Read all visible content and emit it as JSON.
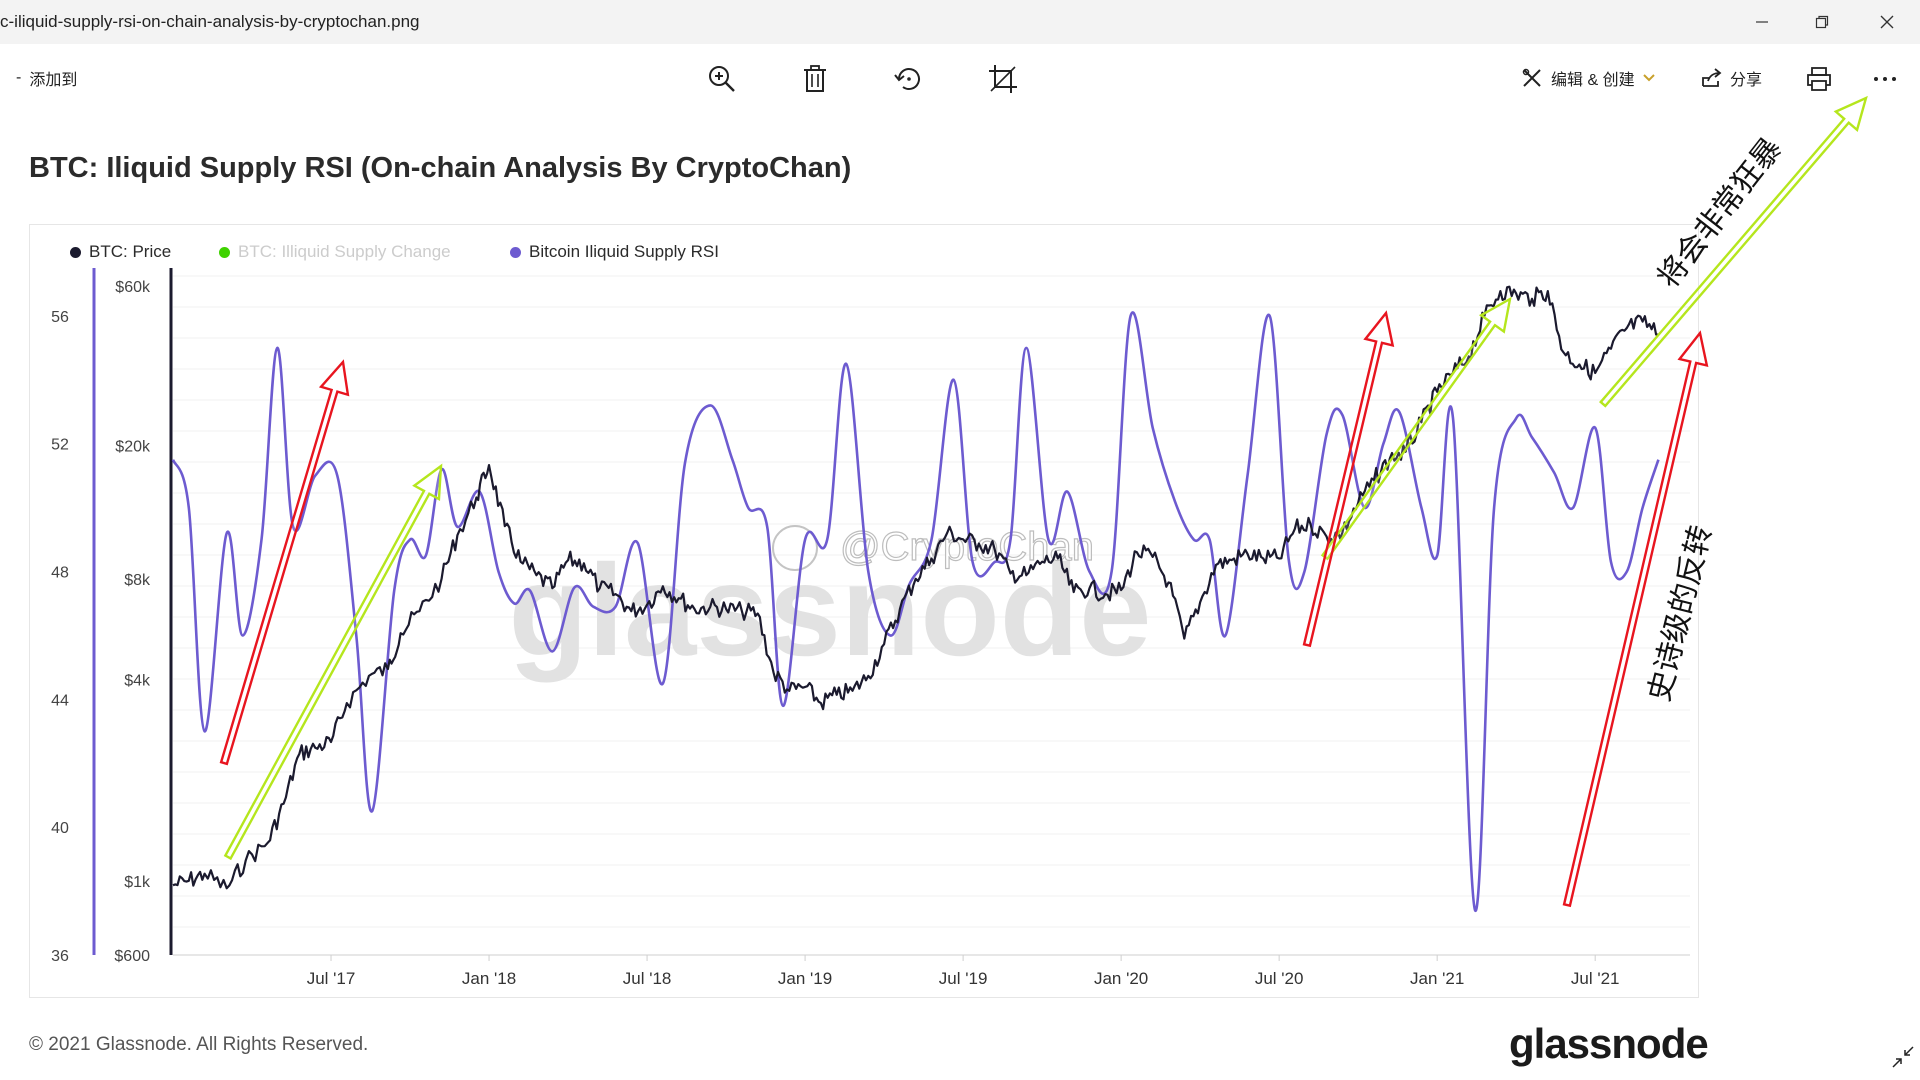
{
  "window": {
    "title": "c-iliquid-supply-rsi-on-chain-analysis-by-cryptochan.png",
    "controls": [
      "minimize",
      "restore",
      "close"
    ]
  },
  "toolbar": {
    "add_to_label": "添加到",
    "edit_create_label": "编辑 & 创建",
    "share_label": "分享",
    "icons": [
      "zoom-in-icon",
      "delete-icon",
      "rotate-icon",
      "crop-icon",
      "edit-icon",
      "share-icon",
      "print-icon",
      "more-icon"
    ]
  },
  "colors": {
    "price": "#1b1a2e",
    "rsi": "#6d5bd0",
    "supply_change": "#3fd200",
    "arrow_red": "#e8151f",
    "arrow_green": "#b5e61d"
  },
  "footer": {
    "copyright": "© 2021 Glassnode. All Rights Reserved.",
    "logo": "glassnode"
  },
  "chart_data": {
    "type": "line",
    "title": "BTC: Iliquid Supply RSI (On-chain Analysis By CryptoChan)",
    "legend": [
      {
        "name": "BTC: Price",
        "color": "#1b1a2e"
      },
      {
        "name": "BTC: Illiquid Supply Change",
        "color": "#3fd200",
        "disabled": true
      },
      {
        "name": "Bitcoin Iliquid Supply RSI",
        "color": "#6d5bd0"
      }
    ],
    "x_ticks": [
      "Jul '17",
      "Jan '18",
      "Jul '18",
      "Jan '19",
      "Jul '19",
      "Jan '20",
      "Jul '20",
      "Jan '21",
      "Jul '21"
    ],
    "x_tick_dates": [
      2017.5,
      2018.0,
      2018.5,
      2019.0,
      2019.5,
      2020.0,
      2020.5,
      2021.0,
      2021.5
    ],
    "xlim": [
      2017.0,
      2021.8
    ],
    "rsi_axis": {
      "ticks": [
        56,
        52,
        48,
        44,
        40,
        36
      ],
      "ylim": [
        36,
        57.5
      ]
    },
    "price_axis": {
      "ticks": [
        "$60k",
        "$20k",
        "$8k",
        "$4k",
        "$1k",
        "$600"
      ],
      "values": [
        60000,
        20000,
        8000,
        4000,
        1000,
        600
      ],
      "scale": "log"
    },
    "series": [
      {
        "name": "Bitcoin Iliquid Supply RSI",
        "x": [
          2017.0,
          2017.05,
          2017.1,
          2017.17,
          2017.22,
          2017.28,
          2017.33,
          2017.38,
          2017.45,
          2017.52,
          2017.58,
          2017.63,
          2017.7,
          2017.75,
          2017.8,
          2017.85,
          2017.9,
          2017.97,
          2018.03,
          2018.08,
          2018.13,
          2018.2,
          2018.27,
          2018.33,
          2018.4,
          2018.47,
          2018.55,
          2018.62,
          2018.7,
          2018.77,
          2018.82,
          2018.88,
          2018.93,
          2019.0,
          2019.07,
          2019.13,
          2019.2,
          2019.27,
          2019.33,
          2019.4,
          2019.47,
          2019.53,
          2019.6,
          2019.65,
          2019.7,
          2019.77,
          2019.83,
          2019.9,
          2019.97,
          2020.03,
          2020.1,
          2020.17,
          2020.23,
          2020.28,
          2020.33,
          2020.4,
          2020.47,
          2020.53,
          2020.58,
          2020.65,
          2020.7,
          2020.77,
          2020.83,
          2020.88,
          2020.95,
          2021.0,
          2021.05,
          2021.12,
          2021.18,
          2021.25,
          2021.3,
          2021.37,
          2021.43,
          2021.5,
          2021.55,
          2021.6,
          2021.65,
          2021.7
        ],
        "values": [
          51.5,
          50.0,
          43.0,
          49.2,
          46.0,
          49.0,
          55.0,
          49.4,
          51.0,
          51.0,
          46.0,
          40.5,
          47.4,
          49.0,
          48.5,
          51.2,
          49.4,
          50.5,
          48.0,
          47.0,
          47.4,
          45.5,
          47.5,
          46.9,
          46.9,
          48.9,
          44.5,
          51.4,
          53.2,
          51.5,
          50.0,
          49.4,
          43.8,
          49.0,
          49.0,
          54.5,
          48.0,
          46.0,
          47.6,
          49.0,
          54.0,
          48.3,
          48.3,
          49.0,
          55.0,
          49.0,
          50.5,
          48.0,
          48.0,
          56.0,
          52.5,
          50.2,
          49.0,
          49.0,
          46.0,
          51.0,
          56.0,
          48.4,
          48.0,
          52.3,
          52.9,
          50.0,
          52.0,
          53.0,
          50.0,
          48.5,
          52.8,
          37.4,
          50.0,
          52.8,
          52.2,
          51.1,
          50.0,
          52.5,
          48.3,
          48.0,
          50.0,
          51.5
        ]
      },
      {
        "name": "BTC: Price",
        "x": [
          2017.0,
          2017.05,
          2017.1,
          2017.17,
          2017.23,
          2017.3,
          2017.35,
          2017.4,
          2017.45,
          2017.5,
          2017.55,
          2017.62,
          2017.68,
          2017.72,
          2017.78,
          2017.85,
          2017.9,
          2017.96,
          2018.0,
          2018.05,
          2018.1,
          2018.15,
          2018.2,
          2018.25,
          2018.3,
          2018.35,
          2018.4,
          2018.45,
          2018.5,
          2018.55,
          2018.6,
          2018.65,
          2018.7,
          2018.75,
          2018.8,
          2018.85,
          2018.9,
          2018.95,
          2019.0,
          2019.05,
          2019.1,
          2019.15,
          2019.2,
          2019.25,
          2019.3,
          2019.35,
          2019.4,
          2019.45,
          2019.5,
          2019.55,
          2019.6,
          2019.65,
          2019.7,
          2019.75,
          2019.8,
          2019.85,
          2019.9,
          2019.95,
          2020.0,
          2020.05,
          2020.1,
          2020.15,
          2020.2,
          2020.25,
          2020.3,
          2020.35,
          2020.4,
          2020.45,
          2020.5,
          2020.55,
          2020.6,
          2020.65,
          2020.7,
          2020.75,
          2020.8,
          2020.85,
          2020.9,
          2020.95,
          2021.0,
          2021.05,
          2021.1,
          2021.15,
          2021.2,
          2021.25,
          2021.3,
          2021.35,
          2021.4,
          2021.45,
          2021.5,
          2021.55,
          2021.6,
          2021.65,
          2021.7
        ],
        "values": [
          970,
          1000,
          1050,
          950,
          1150,
          1300,
          1700,
          2400,
          2500,
          2600,
          3400,
          4100,
          4300,
          5500,
          6400,
          8000,
          10800,
          14000,
          17500,
          11500,
          9000,
          8200,
          7500,
          9100,
          8900,
          7500,
          7200,
          6400,
          6700,
          7600,
          7000,
          6500,
          6600,
          6500,
          6400,
          6300,
          4200,
          3700,
          3800,
          3400,
          3600,
          3700,
          4100,
          5100,
          6500,
          8000,
          9200,
          11000,
          10500,
          10200,
          9800,
          8300,
          8200,
          9000,
          9200,
          7300,
          7500,
          7200,
          7400,
          9600,
          9300,
          7800,
          5300,
          6800,
          8800,
          9100,
          9500,
          9200,
          9200,
          11300,
          11600,
          10700,
          11000,
          13500,
          15800,
          18300,
          19200,
          23500,
          29000,
          33000,
          37000,
          49000,
          58000,
          57000,
          55000,
          58000,
          38000,
          35000,
          33000,
          39000,
          45000,
          47000,
          43000
        ]
      }
    ],
    "annotations": {
      "text_green": "将会非常狂暴",
      "text_red": "史诗级的反转",
      "watermark_logo": "glassnode",
      "watermark_weibo": "@CryptoChan"
    }
  }
}
